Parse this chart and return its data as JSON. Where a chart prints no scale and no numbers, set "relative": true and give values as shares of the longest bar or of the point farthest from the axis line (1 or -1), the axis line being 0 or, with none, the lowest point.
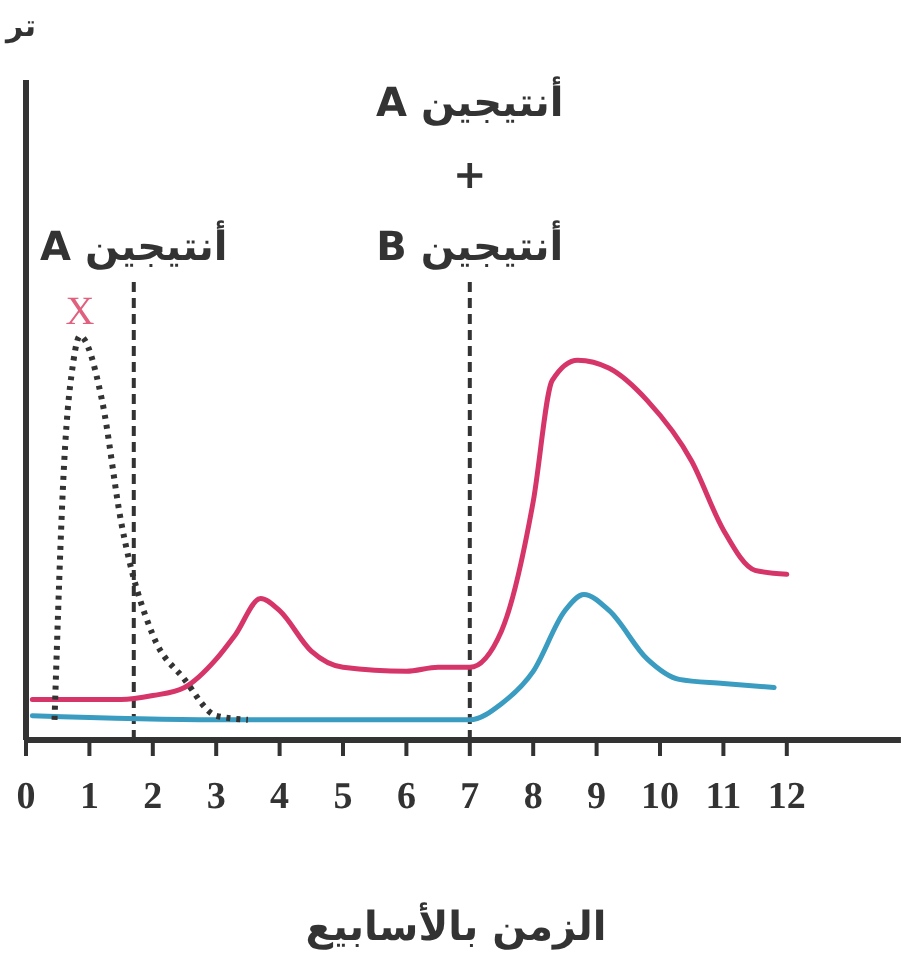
{
  "chart_data": {
    "type": "line",
    "relative": true,
    "annotations": [
      "تر"
    ],
    "xlabel": "الزمن بالأسابيع",
    "xlim": [
      0,
      13.8
    ],
    "xticks": [
      0,
      1,
      2,
      3,
      4,
      5,
      6,
      7,
      8,
      9,
      10,
      11,
      12
    ],
    "series": [
      {
        "color": "#d6356a",
        "x": [
          0.1,
          1.5,
          2,
          2.5,
          3,
          3.3,
          3.7,
          4,
          4.5,
          5,
          6,
          6.5,
          7,
          7.5,
          8,
          8.3,
          8.7,
          9.2,
          9.8,
          10.5,
          11,
          11.5,
          12
        ],
        "values": [
          0.1,
          0.1,
          0.11,
          0.13,
          0.2,
          0.26,
          0.35,
          0.32,
          0.22,
          0.18,
          0.17,
          0.18,
          0.18,
          0.27,
          0.59,
          0.89,
          0.94,
          0.92,
          0.84,
          0.69,
          0.52,
          0.42,
          0.41
        ]
      },
      {
        "color": "#3a9cc0",
        "x": [
          0.1,
          3,
          7,
          7.5,
          8,
          8.5,
          8.8,
          9.2,
          9.8,
          10.3,
          11,
          11.8
        ],
        "values": [
          0.06,
          0.05,
          0.05,
          0.09,
          0.17,
          0.32,
          0.36,
          0.32,
          0.2,
          0.15,
          0.14,
          0.13
        ]
      },
      {
        "name": "X",
        "color": "#333333",
        "line_style": "dotted",
        "x": [
          0.45,
          0.6,
          0.75,
          0.85,
          1.2,
          1.5,
          2,
          2.5,
          3,
          3.5
        ],
        "values": [
          0.05,
          0.68,
          0.94,
          1,
          0.84,
          0.54,
          0.26,
          0.15,
          0.06,
          0.05
        ]
      }
    ],
    "ref_lines": [
      {
        "axis": "x",
        "value": 1.7,
        "label": "أنتيجين A",
        "line_style": "dashed"
      },
      {
        "axis": "x",
        "value": 7,
        "label": "أنتيجين A\n+\nأنتيجين B",
        "line_style": "dashed"
      }
    ]
  }
}
